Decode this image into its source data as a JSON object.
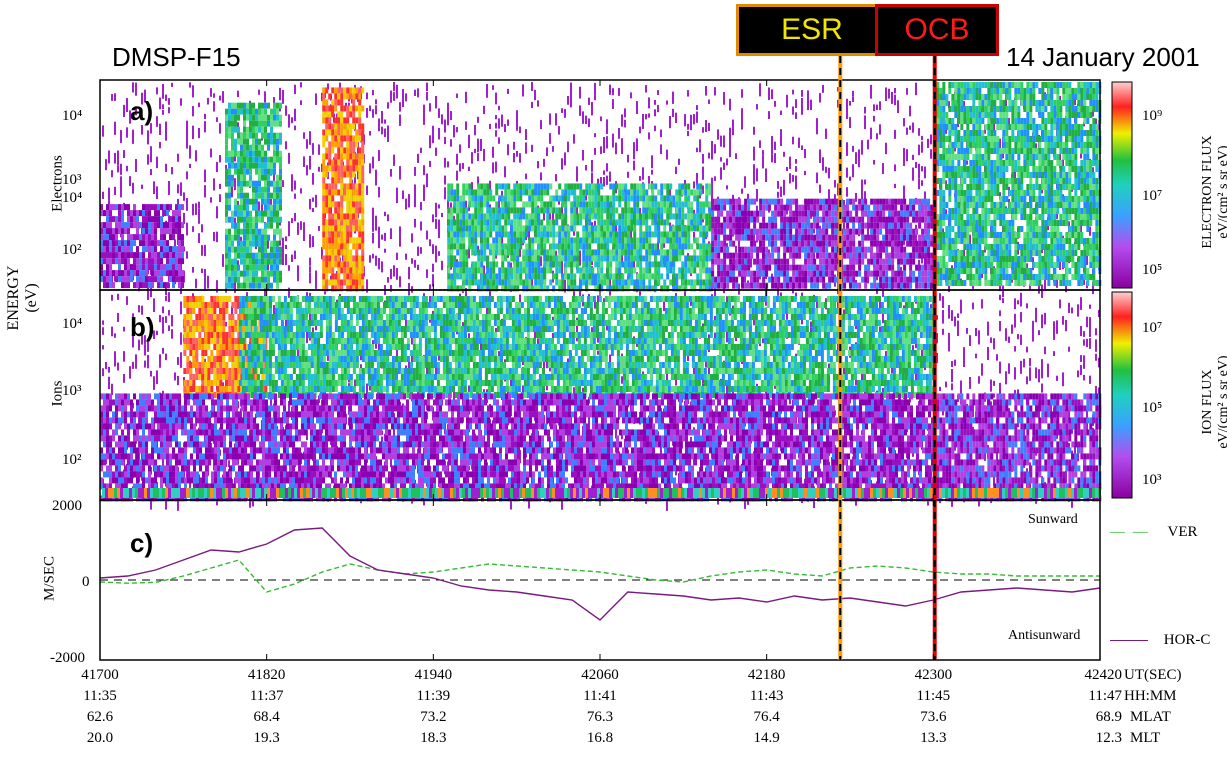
{
  "header": {
    "satellite": "DMSP-F15",
    "date": "14 January 2001",
    "markers": [
      {
        "label": "ESR",
        "x_value": 42233,
        "text_color": "#f2e600",
        "border_color": "#e08a00",
        "line_color": "#ff9900"
      },
      {
        "label": "OCB",
        "x_value": 42301,
        "text_color": "#ff1a1a",
        "border_color": "#cc0000",
        "line_color": "#e00000"
      }
    ]
  },
  "panels": {
    "a": {
      "tag": "a)",
      "side_label": "Electrons"
    },
    "b": {
      "tag": "b)",
      "side_label": "Ions"
    },
    "c": {
      "tag": "c)",
      "ylabel": "M/SEC",
      "sunward": "Sunward",
      "antisunward": "Antisunward"
    },
    "energy_label": "ENERGY (eV)"
  },
  "colorbars": {
    "electron": {
      "label1": "ELECTRON FLUX",
      "label2": "eV/(cm² s sr eV)",
      "ticks": [
        "10⁹",
        "10⁷",
        "10⁵"
      ]
    },
    "ion": {
      "label1": "ION FLUX",
      "label2": "eV/(cm² s sr eV)",
      "ticks": [
        "10⁷",
        "10⁵",
        "10³"
      ]
    }
  },
  "energy_ticks": [
    "10⁴",
    "10³",
    "10²"
  ],
  "velocity_ticks": [
    "2000",
    "0",
    "-2000"
  ],
  "legend": {
    "ver": "VER",
    "hor": "HOR-C"
  },
  "footer": {
    "row_labels": [
      "UT(SEC)",
      "HH:MM",
      "MLAT",
      "MLT"
    ],
    "ut": [
      "41700",
      "41820",
      "41940",
      "42060",
      "42180",
      "42300",
      "42420"
    ],
    "hhmm": [
      "11:35",
      "11:37",
      "11:39",
      "11:41",
      "11:43",
      "11:45",
      "11:47"
    ],
    "mlat": [
      "62.6",
      "68.4",
      "73.2",
      "76.3",
      "76.4",
      "73.6",
      "68.9"
    ],
    "mlt": [
      "20.0",
      "19.3",
      "18.3",
      "16.8",
      "14.9",
      "13.3",
      "12.3"
    ]
  },
  "chart_data": [
    {
      "type": "heatmap",
      "title": "Electrons",
      "xlabel": "UT(SEC)",
      "ylabel": "ENERGY (eV)",
      "xlim": [
        41700,
        42420
      ],
      "ylim": [
        30,
        30000
      ],
      "y_scale": "log",
      "colorbar_label": "ELECTRON FLUX eV/(cm² s sr eV)",
      "colorbar_range": [
        100000,
        3000000000
      ],
      "features": [
        {
          "x_range": [
            41700,
            41760
          ],
          "energy_max": 500,
          "level": "low"
        },
        {
          "x_range": [
            41790,
            41830
          ],
          "energy_max": 15000,
          "level": "medium"
        },
        {
          "x_range": [
            41860,
            41890
          ],
          "energy_max": 25000,
          "level": "high"
        },
        {
          "x_range": [
            41950,
            42140
          ],
          "energy_max": 1000,
          "level": "medium"
        },
        {
          "x_range": [
            42140,
            42300
          ],
          "energy_max": 600,
          "level": "low"
        },
        {
          "x_range": [
            42300,
            42420
          ],
          "energy_max": 30000,
          "level": "medium"
        }
      ]
    },
    {
      "type": "heatmap",
      "title": "Ions",
      "xlabel": "UT(SEC)",
      "ylabel": "ENERGY (eV)",
      "xlim": [
        41700,
        42420
      ],
      "ylim": [
        30,
        30000
      ],
      "y_scale": "log",
      "colorbar_label": "ION FLUX eV/(cm² s sr eV)",
      "colorbar_range": [
        300,
        100000000
      ],
      "features": [
        {
          "x_range": [
            41760,
            41820
          ],
          "energy_min": 1000,
          "level": "high"
        },
        {
          "x_range": [
            41800,
            42300
          ],
          "energy_min": 1000,
          "level": "medium"
        },
        {
          "x_range": [
            41700,
            42300
          ],
          "energy_max": 1000,
          "level": "low"
        },
        {
          "x_range": [
            42300,
            42420
          ],
          "energy_max": 1000,
          "level": "low"
        }
      ]
    },
    {
      "type": "line",
      "title": "",
      "xlabel": "UT(SEC)",
      "ylabel": "M/SEC",
      "xlim": [
        41700,
        42420
      ],
      "ylim": [
        -2000,
        2000
      ],
      "series": [
        {
          "name": "VER",
          "color": "#33bb33",
          "style": "dashed",
          "x": [
            41700,
            41720,
            41740,
            41760,
            41780,
            41800,
            41820,
            41840,
            41860,
            41880,
            41900,
            41920,
            41940,
            41960,
            41980,
            42000,
            42020,
            42040,
            42060,
            42080,
            42100,
            42120,
            42140,
            42160,
            42180,
            42200,
            42220,
            42240,
            42260,
            42280,
            42300,
            42320,
            42340,
            42360,
            42380,
            42400,
            42420
          ],
          "y": [
            -50,
            -80,
            -60,
            100,
            300,
            500,
            -300,
            -100,
            200,
            400,
            250,
            150,
            200,
            300,
            400,
            350,
            300,
            250,
            200,
            100,
            0,
            -50,
            100,
            200,
            250,
            150,
            100,
            300,
            350,
            300,
            200,
            150,
            150,
            100,
            100,
            100,
            100
          ]
        },
        {
          "name": "HOR-C",
          "color": "#7a1a80",
          "style": "solid",
          "x": [
            41700,
            41720,
            41740,
            41760,
            41780,
            41800,
            41820,
            41840,
            41860,
            41880,
            41900,
            41920,
            41940,
            41960,
            41980,
            42000,
            42020,
            42040,
            42060,
            42080,
            42100,
            42120,
            42140,
            42160,
            42180,
            42200,
            42220,
            42240,
            42260,
            42280,
            42300,
            42320,
            42340,
            42360,
            42380,
            42400,
            42420
          ],
          "y": [
            50,
            100,
            250,
            500,
            750,
            700,
            900,
            1250,
            1300,
            600,
            250,
            150,
            50,
            -150,
            -250,
            -300,
            -400,
            -500,
            -1000,
            -300,
            -350,
            -400,
            -500,
            -450,
            -550,
            -400,
            -500,
            -450,
            -550,
            -650,
            -500,
            -300,
            -250,
            -200,
            -250,
            -300,
            -200
          ]
        }
      ]
    }
  ]
}
